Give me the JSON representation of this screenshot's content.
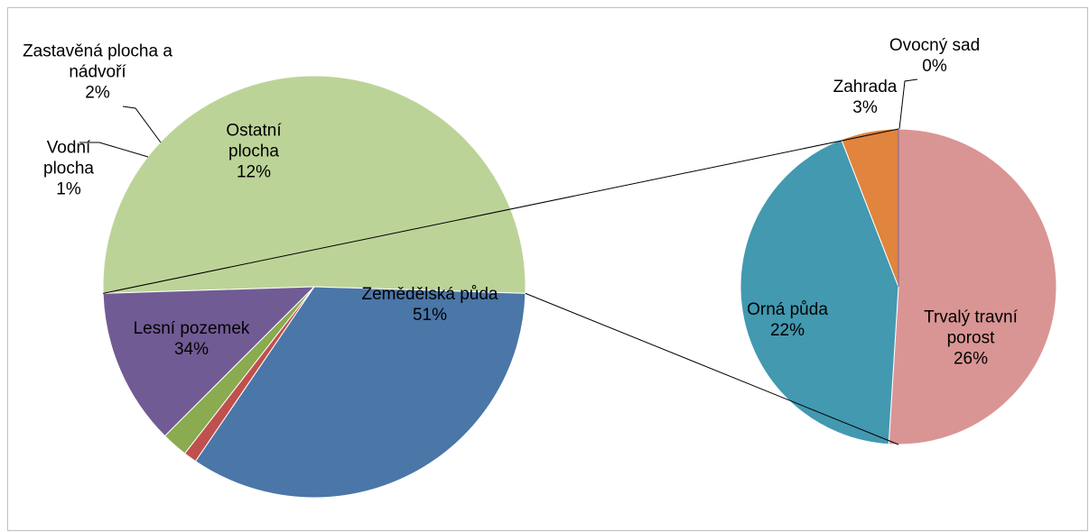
{
  "chart_data": {
    "type": "pie-of-pie",
    "pies": [
      {
        "categories": [
          "Zemědělská půda",
          "Lesní pozemek",
          "Vodní plocha",
          "Zastavěná plocha a nádvoří",
          "Ostatní plocha"
        ],
        "values": [
          51,
          34,
          1,
          2,
          12
        ],
        "value_labels": [
          "51%",
          "34%",
          "1%",
          "2%",
          "12%"
        ],
        "colors": [
          "#bcd398",
          "#4a76a8",
          "#c0504d",
          "#8aab4f",
          "#715b94"
        ]
      },
      {
        "categories": [
          "Trvalý travní porost",
          "Orná půda",
          "Zahrada",
          "Ovocný sad"
        ],
        "values": [
          26,
          22,
          3,
          0
        ],
        "value_labels": [
          "26%",
          "22%",
          "3%",
          "0%"
        ],
        "colors": [
          "#d99594",
          "#4299b0",
          "#e0843e",
          "#8064a2"
        ]
      }
    ]
  }
}
